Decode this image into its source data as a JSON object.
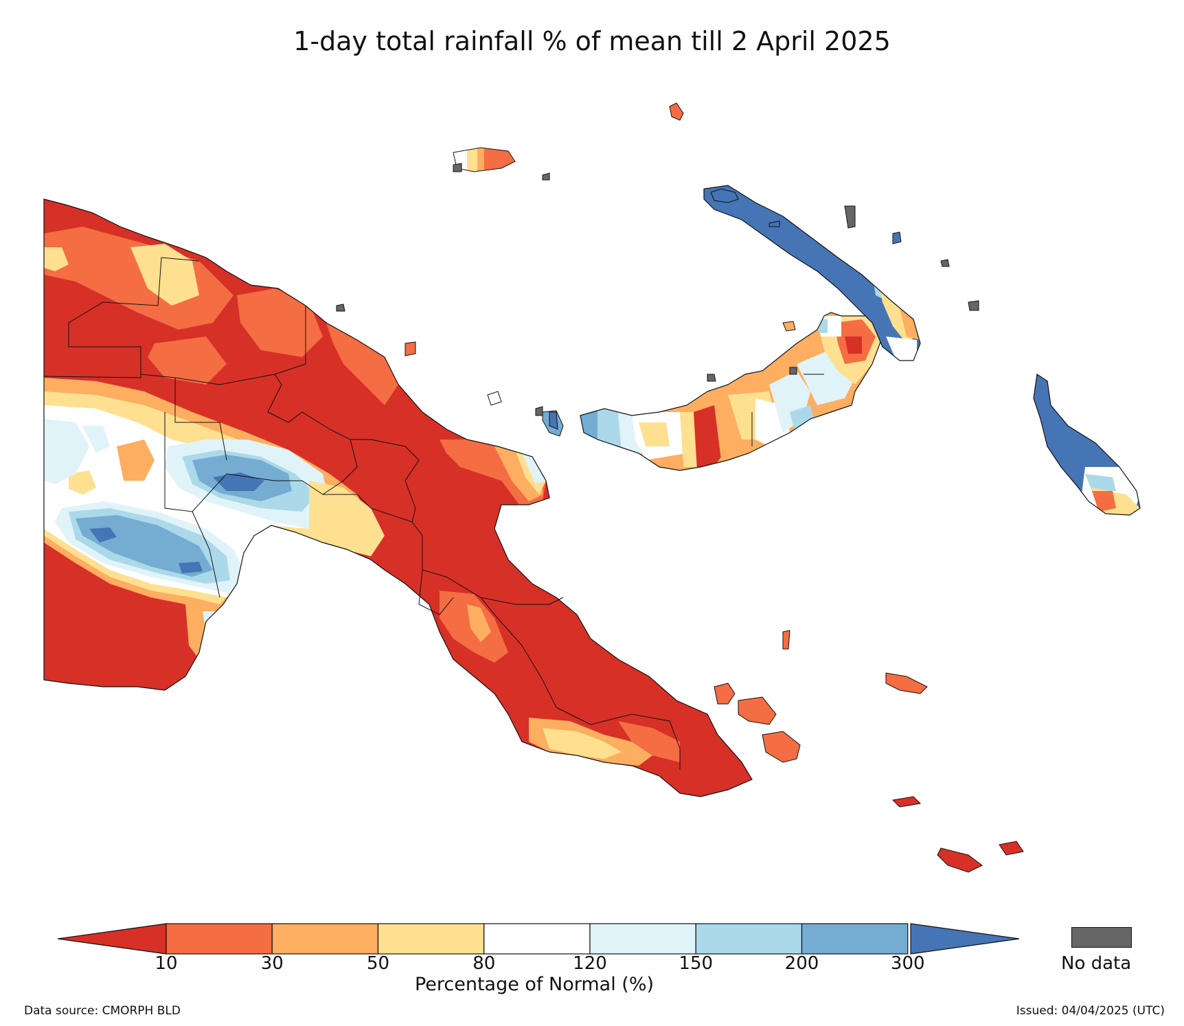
{
  "title": "1-day total rainfall % of mean till 2 April 2025",
  "legend": {
    "colors": [
      "#d73027",
      "#f46d43",
      "#fdae61",
      "#fee090",
      "#ffffff",
      "#e0f3f8",
      "#abd9e9",
      "#74add1",
      "#4575b4"
    ],
    "ticks": [
      "10",
      "30",
      "50",
      "80",
      "120",
      "150",
      "200",
      "300"
    ],
    "label": "Percentage of Normal (%)",
    "nodata_label": "No data",
    "nodata_color": "#666666"
  },
  "footer": {
    "source": "Data source: CMORPH BLD",
    "issued": "Issued: 04/04/2025 (UTC)"
  }
}
